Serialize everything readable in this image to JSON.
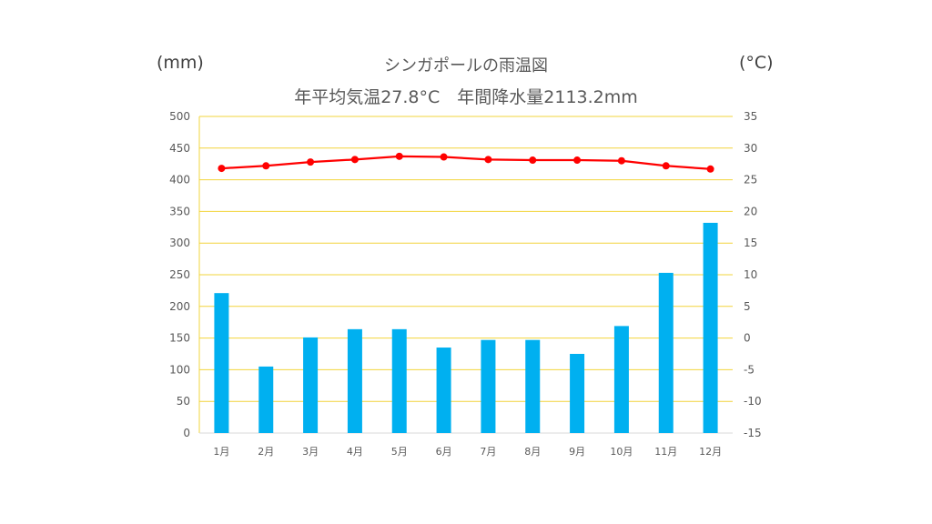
{
  "chart_data": {
    "type": "bar+line",
    "title": "シンガポールの雨温図",
    "subtitle": "年平均気温27.8°C　年間降水量2113.2mm",
    "y_left_label": "(mm)",
    "y_right_label": "(°C)",
    "categories": [
      "1月",
      "2月",
      "3月",
      "4月",
      "5月",
      "6月",
      "7月",
      "8月",
      "9月",
      "10月",
      "11月",
      "12月"
    ],
    "precipitation": [
      221,
      105,
      151,
      164,
      164,
      135,
      147,
      147,
      125,
      169,
      253,
      332
    ],
    "temperature": [
      26.8,
      27.2,
      27.8,
      28.2,
      28.7,
      28.6,
      28.2,
      28.1,
      28.1,
      28.0,
      27.2,
      26.7
    ],
    "y_left_range": [
      0,
      500
    ],
    "y_left_ticks": [
      0,
      50,
      100,
      150,
      200,
      250,
      300,
      350,
      400,
      450,
      500
    ],
    "y_right_range": [
      -15,
      35
    ],
    "y_right_ticks": [
      -15,
      -10,
      -5,
      0,
      5,
      10,
      15,
      20,
      25,
      30,
      35
    ],
    "grid": true,
    "colors": {
      "bar": "#00B0F0",
      "line": "#FF0000",
      "grid": "#F2D43C",
      "text": "#595959"
    }
  }
}
